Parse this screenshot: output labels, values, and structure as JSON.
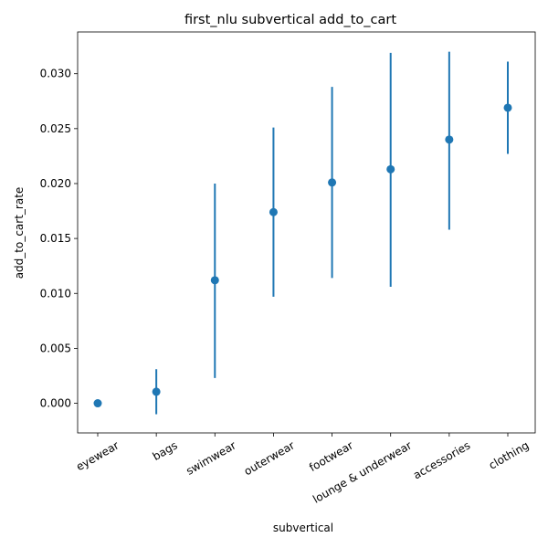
{
  "chart_data": {
    "type": "scatter",
    "title": "first_nlu subvertical add_to_cart",
    "xlabel": "subvertical",
    "ylabel": "add_to_cart_rate",
    "categories": [
      "eyewear",
      "bags",
      "swimwear",
      "outerwear",
      "footwear",
      "lounge & underwear",
      "accessories",
      "clothing"
    ],
    "values": [
      0.0,
      0.00105,
      0.0112,
      0.0174,
      0.0201,
      0.0213,
      0.024,
      0.0269
    ],
    "error_low": [
      0.0,
      -0.001,
      0.0023,
      0.0097,
      0.0114,
      0.0106,
      0.0158,
      0.0227
    ],
    "error_high": [
      0.0,
      0.0031,
      0.02,
      0.0251,
      0.0288,
      0.0319,
      0.032,
      0.0311
    ],
    "yticks": [
      "0.000",
      "0.005",
      "0.010",
      "0.015",
      "0.020",
      "0.025",
      "0.030"
    ],
    "ylim": [
      -0.0027,
      0.0338
    ],
    "grid": false,
    "color": "#1f77b4"
  }
}
